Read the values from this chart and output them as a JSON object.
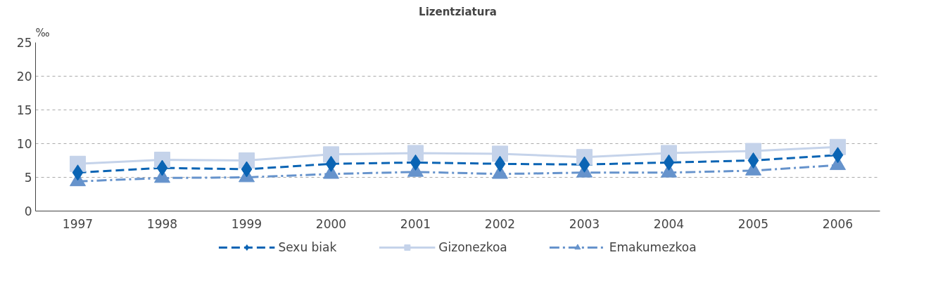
{
  "chart_data": {
    "type": "line",
    "title": "Lizentziatura",
    "ylabel": "‰",
    "categories": [
      "1997",
      "1998",
      "1999",
      "2000",
      "2001",
      "2002",
      "2003",
      "2004",
      "2005",
      "2006"
    ],
    "series": [
      {
        "name": "Sexu biak",
        "color": "#0a64b4",
        "marker": "diamond",
        "line_style": "dashed",
        "values": [
          5.7,
          6.4,
          6.2,
          7.0,
          7.2,
          7.0,
          6.9,
          7.2,
          7.5,
          8.3
        ]
      },
      {
        "name": "Gizonezkoa",
        "color": "#c5d3ea",
        "marker": "square",
        "line_style": "solid",
        "values": [
          7.0,
          7.6,
          7.5,
          8.4,
          8.6,
          8.5,
          8.0,
          8.6,
          8.9,
          9.5
        ]
      },
      {
        "name": "Emakumezkoa",
        "color": "#6693cc",
        "marker": "triangle",
        "line_style": "dashdot",
        "values": [
          4.4,
          4.9,
          5.0,
          5.5,
          5.8,
          5.5,
          5.7,
          5.7,
          6.0,
          6.8
        ]
      }
    ],
    "ylim": [
      0,
      25
    ],
    "yticks": [
      0,
      5,
      10,
      15,
      20,
      25
    ],
    "grid": "y",
    "legend": "bottom"
  }
}
